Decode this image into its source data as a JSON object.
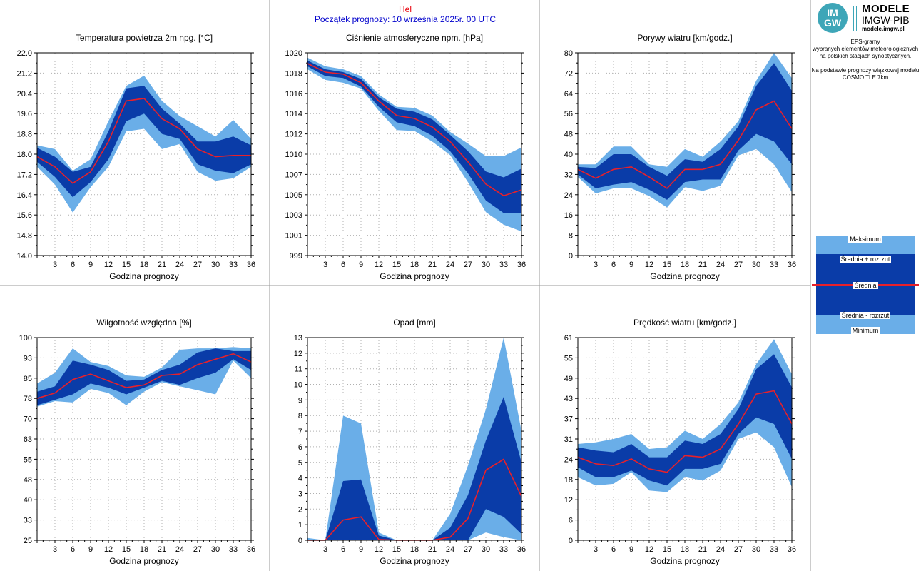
{
  "header": {
    "station": "Hel",
    "forecast_start": "Początek prognozy: 10 września 2025r. 00 UTC"
  },
  "logo": {
    "badge_top": "IM",
    "badge_bottom": "GW",
    "line1": "MODELE",
    "line2": "IMGW-PIB",
    "line3": "modele.imgw.pl"
  },
  "info_lines": [
    "EPS-gramy",
    "wybranych elementów meteorologicznych",
    "na polskich stacjach  synoptycznych.",
    "",
    "Na podstawie prognozy wiązkowej modelu",
    "COSMO TLE 7km"
  ],
  "legend": {
    "max": "Maksimum",
    "mean_plus": "Średnia + rozrzut",
    "mean": "Średnia",
    "mean_minus": "Średnia - rozrzut",
    "min": "Minimum"
  },
  "colors": {
    "range_band": "#6aaee8",
    "spread_band": "#0a3ca8",
    "mean_line": "#e8202a",
    "grid": "#b0b0b0"
  },
  "chart_data": [
    {
      "type": "area",
      "title": "Temperatura powietrza 2m npg. [°C]",
      "xlabel": "Godzina prognozy",
      "ylabel": "",
      "x": [
        0,
        3,
        6,
        9,
        12,
        15,
        18,
        21,
        24,
        27,
        30,
        33,
        36
      ],
      "xticks": [
        "3",
        "6",
        "9",
        "12",
        "15",
        "18",
        "21",
        "24",
        "27",
        "30",
        "33",
        "36"
      ],
      "ylim": [
        14.0,
        22.0
      ],
      "yticks": [
        "14.0",
        "14.8",
        "15.6",
        "16.4",
        "17.2",
        "18.0",
        "18.8",
        "19.6",
        "20.4",
        "21.2",
        "22.0"
      ],
      "series": [
        {
          "name": "Maksimum",
          "values": [
            18.35,
            18.2,
            17.35,
            17.8,
            19.3,
            20.7,
            21.1,
            20.1,
            19.5,
            19.1,
            18.7,
            19.35,
            18.6
          ]
        },
        {
          "name": "Średnia + rozrzut",
          "values": [
            18.25,
            17.9,
            17.3,
            17.5,
            18.9,
            20.6,
            20.7,
            19.8,
            19.2,
            18.5,
            18.5,
            18.7,
            18.35
          ]
        },
        {
          "name": "Średnia",
          "values": [
            17.9,
            17.5,
            16.85,
            17.3,
            18.5,
            20.1,
            20.2,
            19.4,
            19.0,
            18.2,
            17.9,
            17.95,
            17.95
          ]
        },
        {
          "name": "Średnia - rozrzut",
          "values": [
            17.7,
            17.1,
            16.3,
            16.9,
            17.8,
            19.3,
            19.6,
            18.8,
            18.6,
            17.6,
            17.35,
            17.25,
            17.6
          ]
        },
        {
          "name": "Minimum",
          "values": [
            17.5,
            16.8,
            15.7,
            16.7,
            17.5,
            18.9,
            19.0,
            18.2,
            18.4,
            17.3,
            16.95,
            17.05,
            17.5
          ]
        }
      ]
    },
    {
      "type": "area",
      "title": "Ciśnienie atmosferyczne npm. [hPa]",
      "xlabel": "Godzina prognozy",
      "ylabel": "",
      "x": [
        0,
        3,
        6,
        9,
        12,
        15,
        18,
        21,
        24,
        27,
        30,
        33,
        36
      ],
      "xticks": [
        "3",
        "6",
        "9",
        "12",
        "15",
        "18",
        "21",
        "24",
        "27",
        "30",
        "33",
        "36"
      ],
      "ylim": [
        999,
        1020
      ],
      "yticks": [
        "999",
        "1001",
        "1003",
        "1005",
        "1007",
        "1010",
        "1012",
        "1014",
        "1016",
        "1018",
        "1020"
      ],
      "series": [
        {
          "name": "Maksimum",
          "values": [
            1019.5,
            1018.6,
            1018.3,
            1017.6,
            1015.7,
            1014.4,
            1014.3,
            1013.5,
            1011.8,
            1010.6,
            1009.3,
            1009.3,
            1010.2
          ]
        },
        {
          "name": "Średnia + rozrzut",
          "values": [
            1019.2,
            1018.3,
            1018.0,
            1017.3,
            1015.4,
            1014.2,
            1013.9,
            1013.1,
            1011.5,
            1009.8,
            1007.7,
            1007.1,
            1008.0
          ]
        },
        {
          "name": "Średnia",
          "values": [
            1018.9,
            1018.0,
            1017.8,
            1016.9,
            1015.0,
            1013.5,
            1013.2,
            1012.3,
            1010.8,
            1008.7,
            1006.4,
            1005.2,
            1005.8
          ]
        },
        {
          "name": "Średnia - rozrzut",
          "values": [
            1018.6,
            1017.6,
            1017.4,
            1016.5,
            1014.4,
            1012.8,
            1012.4,
            1011.4,
            1009.8,
            1007.5,
            1004.7,
            1003.4,
            1003.4
          ]
        },
        {
          "name": "Minimum",
          "values": [
            1018.3,
            1017.2,
            1016.9,
            1016.3,
            1014.0,
            1012.0,
            1011.9,
            1010.8,
            1009.4,
            1006.6,
            1003.5,
            1002.2,
            1001.5
          ]
        }
      ]
    },
    {
      "type": "area",
      "title": "Porywy wiatru [km/godz.]",
      "xlabel": "Godzina prognozy",
      "ylabel": "",
      "x": [
        0,
        3,
        6,
        9,
        12,
        15,
        18,
        21,
        24,
        27,
        30,
        33,
        36
      ],
      "xticks": [
        "3",
        "6",
        "9",
        "12",
        "15",
        "18",
        "21",
        "24",
        "27",
        "30",
        "33",
        "36"
      ],
      "ylim": [
        0,
        80
      ],
      "yticks": [
        "0",
        "8",
        "16",
        "24",
        "32",
        "40",
        "48",
        "56",
        "64",
        "72",
        "80"
      ],
      "series": [
        {
          "name": "Maksimum",
          "values": [
            36,
            36,
            43,
            43,
            36,
            35,
            42,
            39,
            45,
            53,
            69,
            80,
            70
          ]
        },
        {
          "name": "Średnia + rozrzut",
          "values": [
            35,
            34.5,
            40,
            40,
            35,
            31.5,
            38,
            37,
            42,
            51,
            67,
            76,
            65
          ]
        },
        {
          "name": "Średnia",
          "values": [
            34,
            30.5,
            34,
            35,
            31,
            26.5,
            34,
            34,
            36,
            45.5,
            57.5,
            61,
            50
          ]
        },
        {
          "name": "Średnia - rozrzut",
          "values": [
            32,
            26.5,
            28,
            29,
            26,
            22,
            29,
            30,
            30,
            41.5,
            48,
            45,
            36
          ]
        },
        {
          "name": "Minimum",
          "values": [
            31,
            24.5,
            26.5,
            26.5,
            23.5,
            19,
            27,
            25.5,
            27.5,
            39.5,
            42,
            36,
            25
          ]
        }
      ]
    },
    {
      "type": "area",
      "title": "Wilgotność względna [%]",
      "xlabel": "Godzina prognozy",
      "ylabel": "",
      "x": [
        0,
        3,
        6,
        9,
        12,
        15,
        18,
        21,
        24,
        27,
        30,
        33,
        36
      ],
      "xticks": [
        "3",
        "6",
        "9",
        "12",
        "15",
        "18",
        "21",
        "24",
        "27",
        "30",
        "33",
        "36"
      ],
      "ylim": [
        25,
        100
      ],
      "yticks": [
        "25",
        "33",
        "40",
        "48",
        "55",
        "63",
        "70",
        "78",
        "85",
        "93",
        "100"
      ],
      "series": [
        {
          "name": "Maksimum",
          "values": [
            83,
            87,
            96,
            91,
            89.5,
            86,
            85.5,
            89,
            95.5,
            96,
            96,
            96.5,
            96
          ]
        },
        {
          "name": "Średnia + rozrzut",
          "values": [
            80,
            82,
            91.5,
            90,
            88,
            84,
            84.5,
            88,
            90,
            94.5,
            96,
            95,
            95
          ]
        },
        {
          "name": "Średnia",
          "values": [
            77.5,
            79.5,
            84.5,
            86.5,
            84,
            81.5,
            82.5,
            86,
            86.5,
            90,
            92,
            94,
            91
          ]
        },
        {
          "name": "Średnia - rozrzut",
          "values": [
            75,
            77,
            79,
            83,
            81.5,
            79,
            81.5,
            84,
            82.5,
            85,
            87,
            92,
            88
          ]
        },
        {
          "name": "Minimum",
          "values": [
            74.5,
            76.5,
            76,
            81,
            79.5,
            75,
            80,
            83.5,
            82,
            80.5,
            79,
            91.5,
            85
          ]
        }
      ]
    },
    {
      "type": "area",
      "title": "Opad [mm]",
      "xlabel": "Godzina prognozy",
      "ylabel": "",
      "x": [
        0,
        3,
        6,
        9,
        12,
        15,
        18,
        21,
        24,
        27,
        30,
        33,
        36
      ],
      "xticks": [
        "3",
        "6",
        "9",
        "12",
        "15",
        "18",
        "21",
        "24",
        "27",
        "30",
        "33",
        "36"
      ],
      "ylim": [
        0,
        13
      ],
      "yticks": [
        "0",
        "1",
        "2",
        "3",
        "4",
        "5",
        "6",
        "7",
        "8",
        "9",
        "10",
        "11",
        "12",
        "13"
      ],
      "series": [
        {
          "name": "Maksimum",
          "values": [
            0.15,
            0,
            8.0,
            7.5,
            0.5,
            0,
            0,
            0,
            1.7,
            4.8,
            8.4,
            13.0,
            7.0
          ]
        },
        {
          "name": "Średnia + rozrzut",
          "values": [
            0.05,
            0,
            3.8,
            3.9,
            0.3,
            0,
            0,
            0,
            0.8,
            2.9,
            6.4,
            9.2,
            5.0
          ]
        },
        {
          "name": "Średnia",
          "values": [
            0,
            0,
            1.3,
            1.5,
            0.05,
            0,
            0,
            0,
            0.2,
            1.4,
            4.5,
            5.2,
            2.8
          ]
        },
        {
          "name": "Średnia - rozrzut",
          "values": [
            0,
            0,
            0,
            0,
            0,
            0,
            0,
            0,
            0,
            0,
            2.0,
            1.5,
            0.4
          ]
        },
        {
          "name": "Minimum",
          "values": [
            0,
            0,
            0,
            0,
            0,
            0,
            0,
            0,
            0,
            0,
            0.5,
            0.2,
            0
          ]
        }
      ]
    },
    {
      "type": "area",
      "title": "Prędkość wiatru [km/godz.]",
      "xlabel": "Godzina prognozy",
      "ylabel": "",
      "x": [
        0,
        3,
        6,
        9,
        12,
        15,
        18,
        21,
        24,
        27,
        30,
        33,
        36
      ],
      "xticks": [
        "3",
        "6",
        "9",
        "12",
        "15",
        "18",
        "21",
        "24",
        "27",
        "30",
        "33",
        "36"
      ],
      "ylim": [
        0,
        61
      ],
      "yticks": [
        "0",
        "6",
        "12",
        "18",
        "24",
        "31",
        "37",
        "43",
        "49",
        "55",
        "61"
      ],
      "series": [
        {
          "name": "Maksimum",
          "values": [
            29,
            29.5,
            30.5,
            32,
            27.5,
            28,
            33,
            30.5,
            35,
            41.5,
            53,
            60.5,
            50
          ]
        },
        {
          "name": "Średnia + rozrzut",
          "values": [
            28,
            27,
            26.5,
            29,
            25,
            25,
            30,
            29,
            32,
            39.5,
            51.5,
            56,
            46
          ]
        },
        {
          "name": "Średnia",
          "values": [
            25,
            23,
            22.5,
            24.5,
            21.5,
            20.5,
            25.5,
            25,
            27.5,
            35,
            44,
            45,
            35
          ]
        },
        {
          "name": "Średnia - rozrzut",
          "values": [
            22,
            19,
            19,
            21,
            18,
            16.5,
            21.5,
            21.5,
            23,
            32,
            37,
            35,
            24.5
          ]
        },
        {
          "name": "Minimum",
          "values": [
            19,
            16.5,
            17,
            20.5,
            15,
            14.5,
            19,
            18,
            21,
            30.5,
            32.5,
            28,
            16
          ]
        }
      ]
    }
  ]
}
